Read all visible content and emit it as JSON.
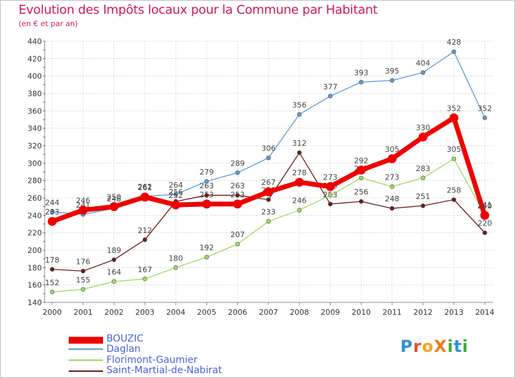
{
  "title": "Evolution des Impôts locaux pour la Commune par Habitant",
  "subtitle": "(en € et par an)",
  "logo": {
    "text": "ProXiti",
    "letters": [
      "P",
      "r",
      "o",
      "X",
      "i",
      "t",
      "i"
    ],
    "colors": [
      "#2f8fd8",
      "#e84a2c",
      "#f3a71c",
      "#f07a1a",
      "#3da83a",
      "#2f8fd8",
      "#3da83a"
    ]
  },
  "chart_data": {
    "type": "line",
    "title": "Evolution des Impôts locaux pour la Commune par Habitant",
    "ylabel": "(en € et par an)",
    "xlabel": "",
    "categories": [
      "2000",
      "2001",
      "2002",
      "2003",
      "2004",
      "2005",
      "2006",
      "2007",
      "2008",
      "2009",
      "2010",
      "2011",
      "2012",
      "2013",
      "2014"
    ],
    "ylim": [
      140,
      440
    ],
    "yticks": [
      140,
      160,
      180,
      200,
      220,
      240,
      260,
      280,
      300,
      320,
      340,
      360,
      380,
      400,
      420,
      440
    ],
    "grid": true,
    "legend_position": "bottom-left",
    "series": [
      {
        "name": "Saint-Martial-de-Nabirat",
        "color": "#6b1a1a",
        "values": [
          178,
          176,
          189,
          212,
          256,
          263,
          263,
          258,
          312,
          253,
          256,
          248,
          251,
          258,
          220
        ],
        "labels": [
          "178",
          "176",
          "189",
          "212",
          "256",
          "263",
          "263",
          "258",
          "312",
          "253",
          "256",
          "248",
          "251",
          "258",
          "220"
        ]
      },
      {
        "name": "Florimont-Gaumier",
        "color": "#9fd85e",
        "values": [
          152,
          155,
          164,
          167,
          180,
          192,
          207,
          233,
          246,
          263,
          283,
          273,
          283,
          305,
          241
        ],
        "labels": [
          "152",
          "155",
          "164",
          "167",
          "180",
          "192",
          "207",
          "233",
          "246",
          "263",
          "283",
          "273",
          "283",
          "305",
          "241"
        ]
      },
      {
        "name": "Daglan",
        "color": "#5b9ad6",
        "values": [
          244,
          241,
          248,
          262,
          264,
          279,
          289,
          306,
          356,
          377,
          393,
          395,
          404,
          428,
          352
        ],
        "labels": [
          "244",
          "241",
          "248",
          "262",
          "264",
          "279",
          "289",
          "306",
          "356",
          "377",
          "393",
          "395",
          "404",
          "428",
          "352"
        ]
      },
      {
        "name": "BOUZIC",
        "color": "#ee0000",
        "values": [
          233,
          246,
          250,
          261,
          252,
          253,
          253,
          267,
          278,
          273,
          292,
          305,
          330,
          352,
          240
        ],
        "labels": [
          "233",
          "246",
          "250",
          "261",
          "252",
          "253",
          "253",
          "267",
          "278",
          "273",
          "292",
          "305",
          "330",
          "352",
          "240"
        ]
      }
    ],
    "legend": [
      "BOUZIC",
      "Daglan",
      "Florimont-Gaumier",
      "Saint-Martial-de-Nabirat"
    ]
  }
}
